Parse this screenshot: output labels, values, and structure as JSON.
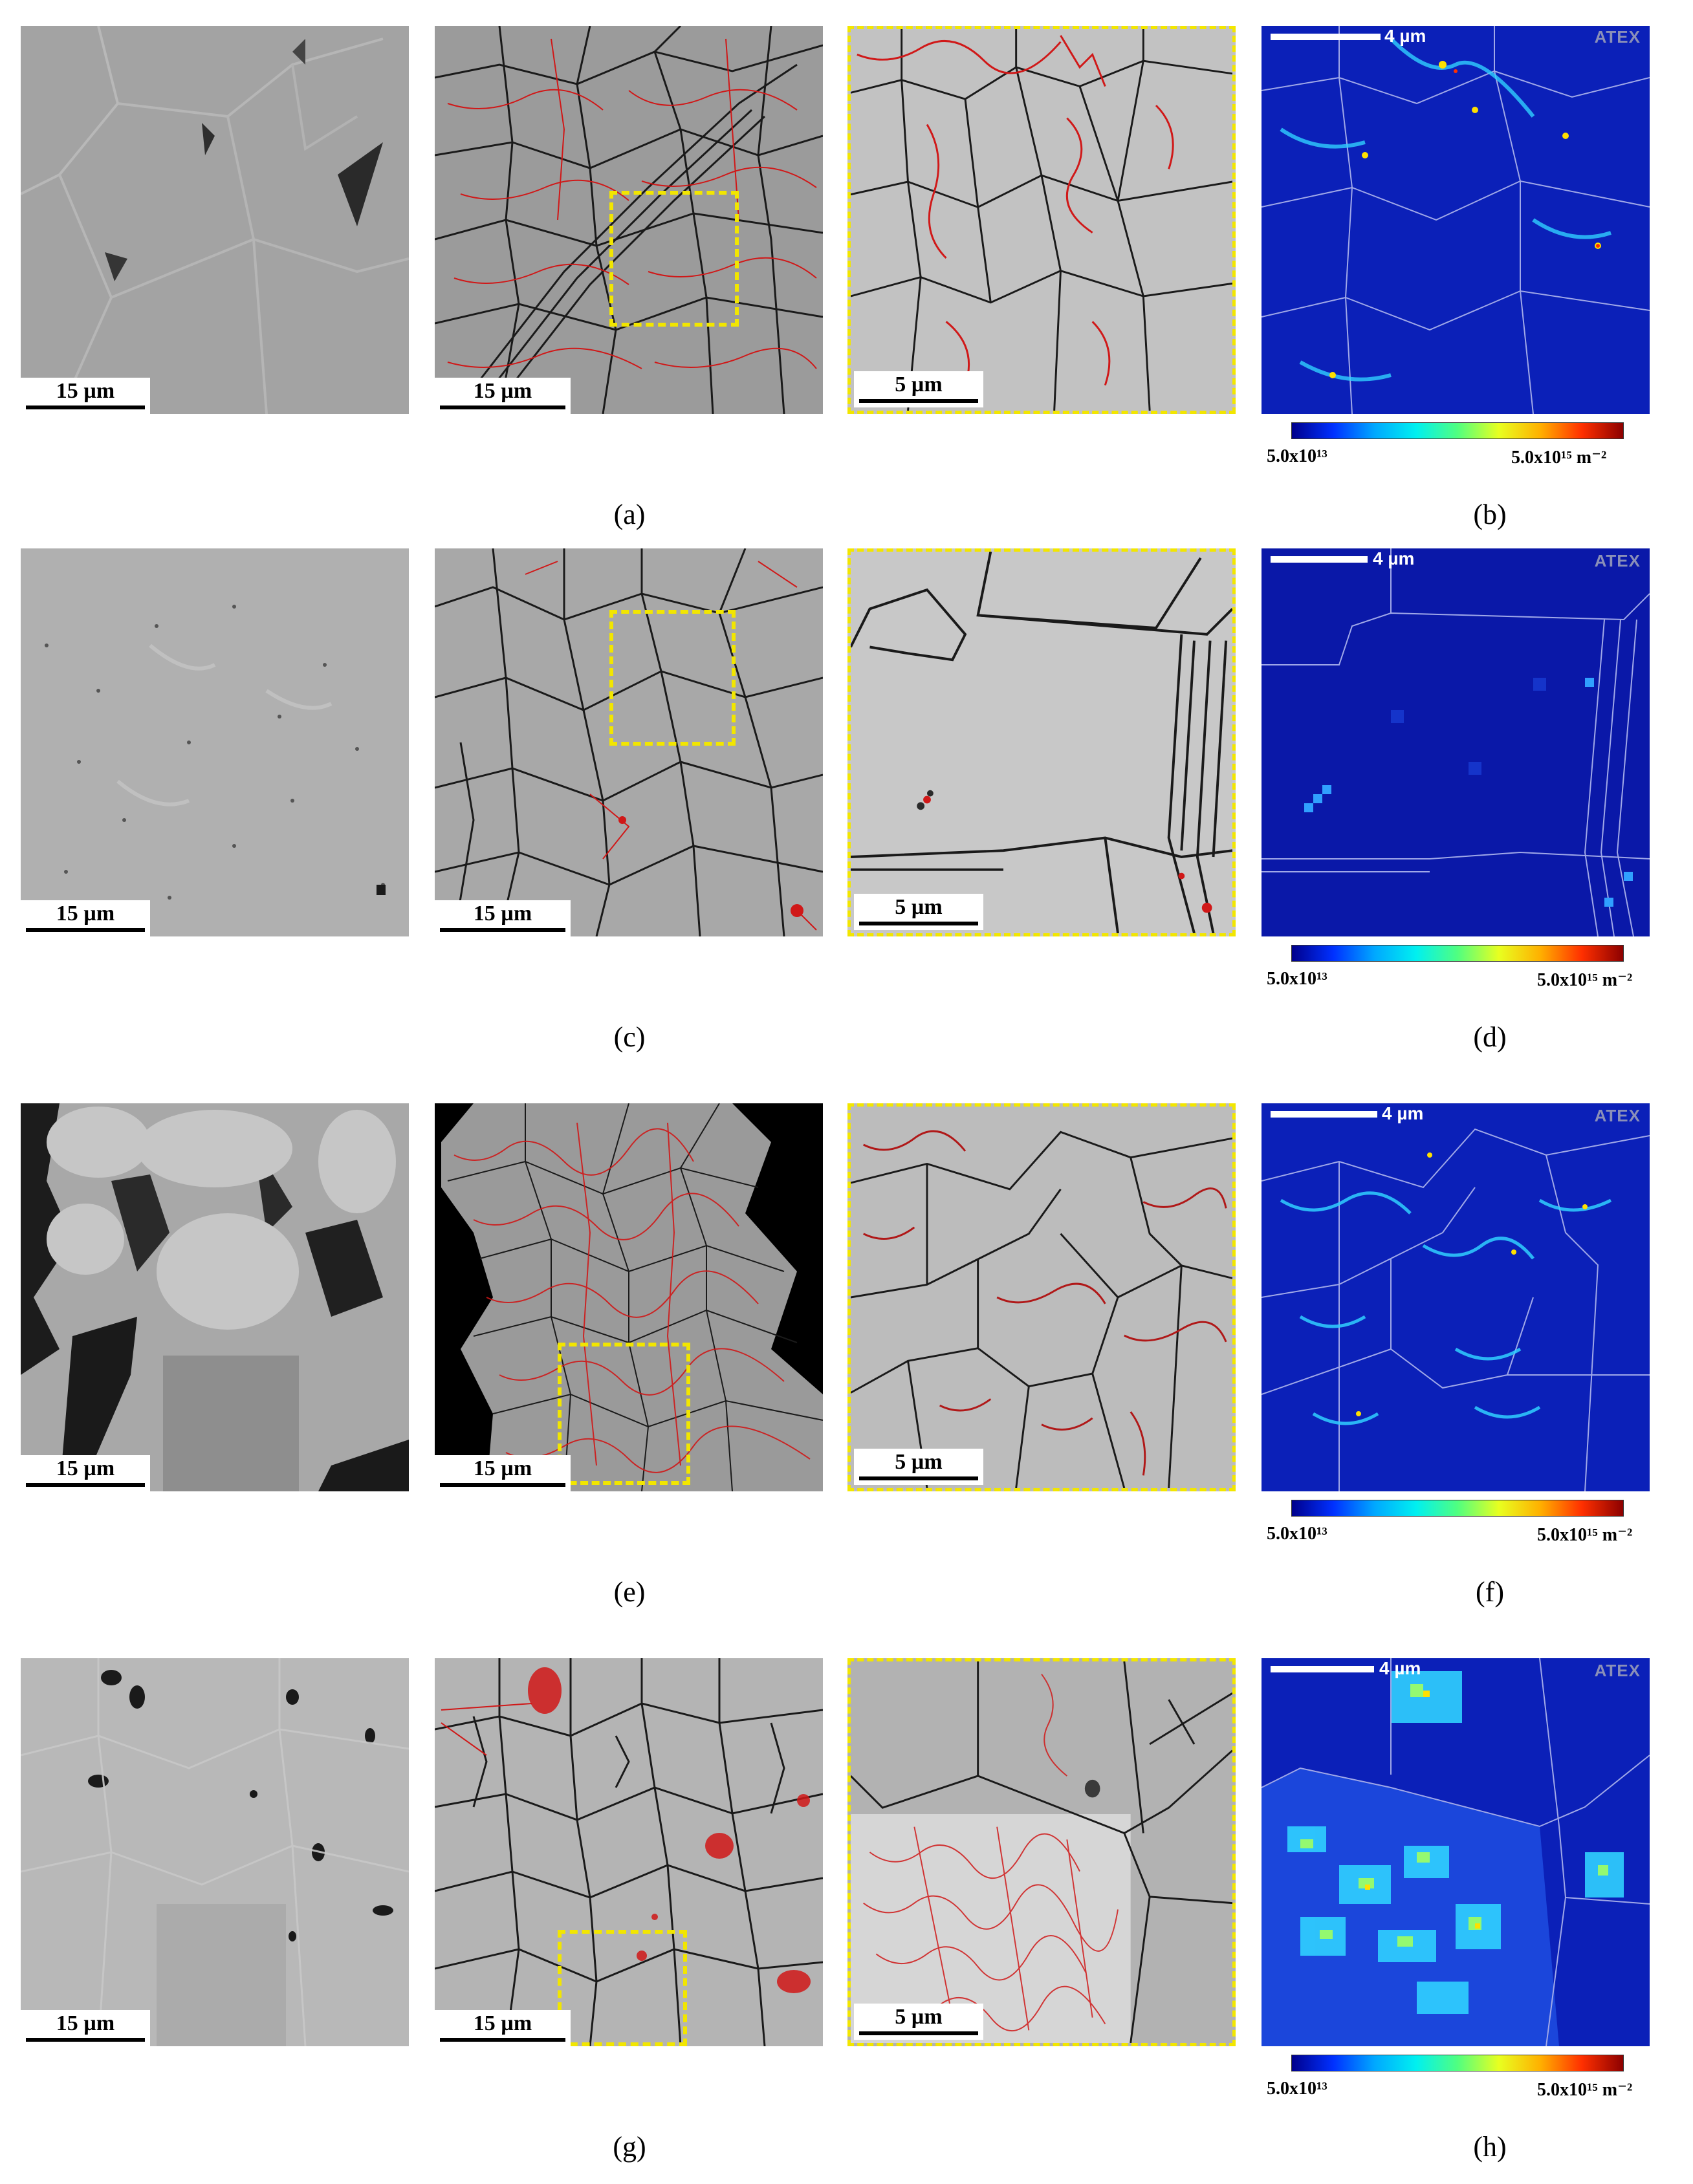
{
  "rows": [
    {
      "sem_scale": "15 µm",
      "ebsd_scale": "15 µm",
      "zoom_scale": "5 µm",
      "density_scale": "4 µm",
      "density_watermark": "ATEX",
      "colorbar_min": "5.0x10¹³",
      "colorbar_max": "5.0x10¹⁵ m⁻²",
      "caption_left": "(a)",
      "caption_right": "(b)"
    },
    {
      "sem_scale": "15 µm",
      "ebsd_scale": "15 µm",
      "zoom_scale": "5 µm",
      "density_scale": "4 µm",
      "density_watermark": "ATEX",
      "colorbar_min": "5.0x10¹³",
      "colorbar_max": "5.0x10¹⁵ m⁻²",
      "caption_left": "(c)",
      "caption_right": "(d)"
    },
    {
      "sem_scale": "15 µm",
      "ebsd_scale": "15 µm",
      "zoom_scale": "5 µm",
      "density_scale": "4 µm",
      "density_watermark": "ATEX",
      "colorbar_min": "5.0x10¹³",
      "colorbar_max": "5.0x10¹⁵ m⁻²",
      "caption_left": "(e)",
      "caption_right": "(f)"
    },
    {
      "sem_scale": "15 µm",
      "ebsd_scale": "15 µm",
      "zoom_scale": "5 µm",
      "density_scale": "4 µm",
      "density_watermark": "ATEX",
      "colorbar_min": "5.0x10¹³",
      "colorbar_max": "5.0x10¹⁵ m⁻²",
      "caption_left": "(g)",
      "caption_right": "(h)"
    }
  ],
  "colors": {
    "grain_boundary": "#1a1a1a",
    "low_angle_boundary": "#d01818",
    "selection_box": "#f2e600",
    "density_background": "#0b20b8"
  }
}
